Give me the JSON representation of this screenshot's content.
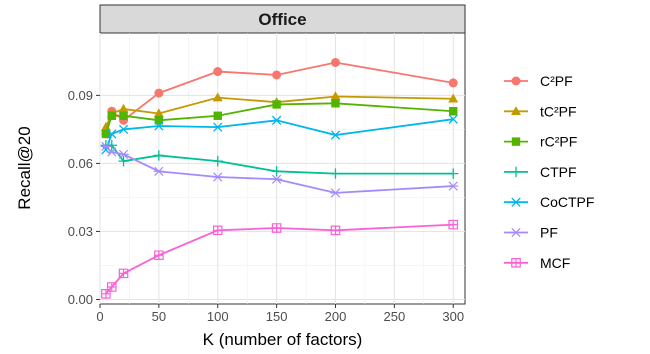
{
  "chart_data": {
    "type": "line",
    "title": "Office",
    "xlabel": "K (number of factors)",
    "ylabel": "Recall@20",
    "x": [
      5,
      10,
      20,
      50,
      100,
      150,
      200,
      300
    ],
    "xlim": [
      0,
      310
    ],
    "ylim": [
      -0.002,
      0.1175
    ],
    "xticks": [
      0,
      50,
      100,
      150,
      200,
      250,
      300
    ],
    "xtick_labels": [
      "0",
      "50",
      "100",
      "150",
      "200",
      "250",
      "300"
    ],
    "yticks": [
      0.0,
      0.03,
      0.06,
      0.09
    ],
    "ytick_labels": [
      "0.00",
      "0.03",
      "0.06",
      "0.09"
    ],
    "grid": true,
    "legend_position": "right",
    "series": [
      {
        "name": "C²PF",
        "color": "#F8766D",
        "marker": "circle",
        "values": [
          0.073,
          0.083,
          0.079,
          0.091,
          0.1005,
          0.099,
          0.1045,
          0.0955
        ]
      },
      {
        "name": "tC²PF",
        "color": "#C49A00",
        "marker": "triangle",
        "values": [
          0.076,
          0.082,
          0.084,
          0.082,
          0.089,
          0.087,
          0.0895,
          0.0885
        ]
      },
      {
        "name": "rC²PF",
        "color": "#53B400",
        "marker": "square",
        "values": [
          0.073,
          0.081,
          0.081,
          0.079,
          0.081,
          0.086,
          0.0865,
          0.083
        ]
      },
      {
        "name": "CTPF",
        "color": "#00C094",
        "marker": "plus",
        "values": [
          0.068,
          0.068,
          0.061,
          0.0635,
          0.061,
          0.0565,
          0.0555,
          0.0555
        ]
      },
      {
        "name": "CoCTPF",
        "color": "#00B6EB",
        "marker": "x",
        "values": [
          0.066,
          0.073,
          0.075,
          0.0765,
          0.076,
          0.079,
          0.0725,
          0.0795
        ]
      },
      {
        "name": "PF",
        "color": "#A58AFF",
        "marker": "asterisk",
        "values": [
          0.0675,
          0.065,
          0.064,
          0.0565,
          0.054,
          0.053,
          0.047,
          0.05
        ]
      },
      {
        "name": "MCF",
        "color": "#FB61D7",
        "marker": "boxsquare",
        "values": [
          0.0025,
          0.0055,
          0.0115,
          0.0195,
          0.0305,
          0.0315,
          0.0305,
          0.033
        ]
      }
    ]
  }
}
